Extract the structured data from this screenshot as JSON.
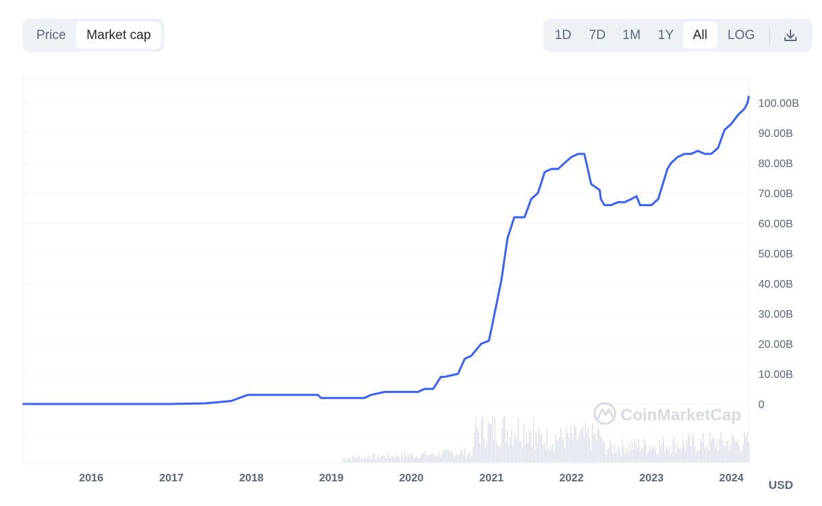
{
  "toggle": {
    "price_label": "Price",
    "market_cap_label": "Market cap",
    "active": "Market cap"
  },
  "ranges": {
    "d1": "1D",
    "d7": "7D",
    "m1": "1M",
    "y1": "1Y",
    "all": "All",
    "log": "LOG",
    "active": "All"
  },
  "download_icon": "download-icon",
  "watermark": {
    "text": "CoinMarketCap",
    "icon": "coinmarketcap-logo-icon"
  },
  "currency": "USD",
  "colors": {
    "line": "#3861fb",
    "grid": "#eff2f5",
    "volume": "#cfd6e4",
    "text": "#58667e"
  },
  "chart_data": {
    "type": "line",
    "title": "",
    "xlabel": "",
    "ylabel": "",
    "unit": "USD",
    "ylim": [
      0,
      105000000000
    ],
    "yticks": [
      0,
      10000000000,
      20000000000,
      30000000000,
      40000000000,
      50000000000,
      60000000000,
      70000000000,
      80000000000,
      90000000000,
      100000000000
    ],
    "ytick_labels": [
      "0",
      "10.00B",
      "20.00B",
      "30.00B",
      "40.00B",
      "50.00B",
      "60.00B",
      "70.00B",
      "80.00B",
      "90.00B",
      "100.00B"
    ],
    "xlim": [
      "2015-02-25",
      "2024-03-20"
    ],
    "xticks": [
      "2016-01-01",
      "2017-01-01",
      "2018-01-01",
      "2019-01-01",
      "2020-01-01",
      "2021-01-01",
      "2022-01-01",
      "2023-01-01",
      "2024-01-01"
    ],
    "xtick_labels": [
      "2016",
      "2017",
      "2018",
      "2019",
      "2020",
      "2021",
      "2022",
      "2023",
      "2024"
    ],
    "grid": true,
    "series": [
      {
        "x": [
          "2015-02-25",
          "2016-01-01",
          "2017-01-01",
          "2017-06-01",
          "2017-10-01",
          "2017-12-15",
          "2018-01-01",
          "2018-02-01",
          "2018-03-01",
          "2018-06-01",
          "2018-09-01",
          "2018-11-01",
          "2018-11-15",
          "2019-01-01",
          "2019-03-01",
          "2019-04-01",
          "2019-06-01",
          "2019-07-01",
          "2019-09-01",
          "2019-12-01",
          "2020-02-01",
          "2020-03-01",
          "2020-03-20",
          "2020-04-10",
          "2020-05-15",
          "2020-06-01",
          "2020-08-01",
          "2020-09-01",
          "2020-10-01",
          "2020-11-15",
          "2020-12-20",
          "2021-01-01",
          "2021-01-15",
          "2021-02-15",
          "2021-03-15",
          "2021-04-15",
          "2021-05-15",
          "2021-06-01",
          "2021-07-01",
          "2021-08-01",
          "2021-09-01",
          "2021-10-01",
          "2021-11-01",
          "2021-12-01",
          "2022-01-01",
          "2022-02-01",
          "2022-03-01",
          "2022-04-01",
          "2022-05-10",
          "2022-05-15",
          "2022-06-01",
          "2022-07-01",
          "2022-08-01",
          "2022-09-01",
          "2022-10-01",
          "2022-10-25",
          "2022-11-10",
          "2022-12-01",
          "2023-01-01",
          "2023-02-01",
          "2023-03-15",
          "2023-04-01",
          "2023-05-01",
          "2023-06-01",
          "2023-07-01",
          "2023-08-01",
          "2023-09-01",
          "2023-10-01",
          "2023-11-01",
          "2023-12-01",
          "2024-01-01",
          "2024-02-01",
          "2024-03-01",
          "2024-03-15",
          "2024-03-20"
        ],
        "y": [
          0,
          0,
          0,
          200000000,
          1000000000,
          3000000000,
          3000000000,
          3000000000,
          3000000000,
          3000000000,
          3000000000,
          3000000000,
          2000000000,
          2000000000,
          2000000000,
          2000000000,
          2000000000,
          3000000000,
          4000000000,
          4000000000,
          4000000000,
          5000000000,
          5000000000,
          5000000000,
          9000000000,
          9000000000,
          10000000000,
          15000000000,
          16000000000,
          20000000000,
          21000000000,
          25000000000,
          30000000000,
          41000000000,
          55000000000,
          62000000000,
          62000000000,
          62000000000,
          68000000000,
          70000000000,
          77000000000,
          78000000000,
          78000000000,
          80000000000,
          82000000000,
          83000000000,
          83000000000,
          73000000000,
          71000000000,
          68000000000,
          66000000000,
          66000000000,
          67000000000,
          67000000000,
          68000000000,
          69000000000,
          66000000000,
          66000000000,
          66000000000,
          68000000000,
          78000000000,
          80000000000,
          82000000000,
          83000000000,
          83000000000,
          84000000000,
          83000000000,
          83000000000,
          85000000000,
          91000000000,
          93000000000,
          96000000000,
          98000000000,
          100000000000,
          102000000000
        ]
      }
    ]
  }
}
